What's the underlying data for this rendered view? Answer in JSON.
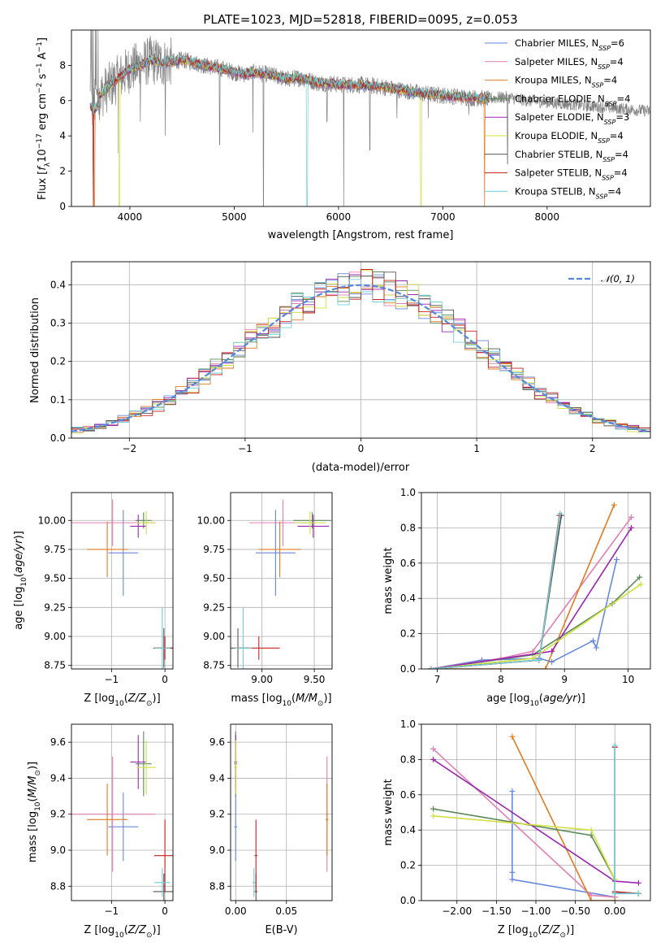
{
  "chart_data": [
    {
      "id": "spectrum",
      "type": "line",
      "title": "PLATE=1023, MJD=52818, FIBERID=0095, z=0.053",
      "xlabel": "wavelength [Angstrom, rest frame]",
      "ylabel": "Flux [f_λ 10^-17 erg cm^-2 s^-1 A^-1]",
      "xlim": [
        3440,
        8990
      ],
      "ylim": [
        0,
        10
      ],
      "xticks": [
        4000,
        5000,
        6000,
        7000,
        8000
      ],
      "yticks": [
        0,
        2,
        4,
        6,
        8
      ],
      "grid": false,
      "legend_position": "top-right",
      "data_color": "#808080",
      "continuum_points": [
        [
          3630,
          5.6
        ],
        [
          3700,
          6.2
        ],
        [
          3800,
          6.8
        ],
        [
          3900,
          7.3
        ],
        [
          4000,
          7.8
        ],
        [
          4100,
          8.0
        ],
        [
          4200,
          8.3
        ],
        [
          4300,
          8.1
        ],
        [
          4400,
          8.2
        ],
        [
          4500,
          8.3
        ],
        [
          4600,
          8.2
        ],
        [
          4700,
          8.0
        ],
        [
          4800,
          7.9
        ],
        [
          4900,
          7.8
        ],
        [
          5000,
          7.6
        ],
        [
          5100,
          7.5
        ],
        [
          5200,
          7.6
        ],
        [
          5300,
          7.5
        ],
        [
          5400,
          7.4
        ],
        [
          5500,
          7.2
        ],
        [
          5600,
          7.3
        ],
        [
          5700,
          7.2
        ],
        [
          5800,
          7.0
        ],
        [
          5900,
          7.0
        ],
        [
          6000,
          6.9
        ],
        [
          6200,
          6.9
        ],
        [
          6400,
          6.8
        ],
        [
          6600,
          6.6
        ],
        [
          6800,
          6.4
        ],
        [
          7000,
          6.3
        ],
        [
          7200,
          6.2
        ],
        [
          7400,
          6.1
        ],
        [
          7600,
          6.2
        ],
        [
          7800,
          6.0
        ],
        [
          8000,
          5.9
        ],
        [
          8200,
          5.8
        ],
        [
          8400,
          5.7
        ],
        [
          8600,
          5.6
        ],
        [
          8800,
          5.5
        ],
        [
          8990,
          5.4
        ]
      ],
      "noise_end": 7430,
      "model_end": 7450,
      "data_end": 8990,
      "series": [
        {
          "name": "Chabrier MILES, N_SSP=6",
          "color": "#6688dd",
          "dips": [
            [
              3650,
              0.3
            ]
          ]
        },
        {
          "name": "Salpeter MILES, N_SSP=4",
          "color": "#e07fb3",
          "dips": []
        },
        {
          "name": "Kroupa MILES, N_SSP=4",
          "color": "#e07b20",
          "dips": [
            [
              3660,
              0.0
            ],
            [
              7400,
              0.0
            ]
          ]
        },
        {
          "name": "Chabrier ELODIE, N_SSP=4",
          "color": "#5a8a5a",
          "dips": []
        },
        {
          "name": "Salpeter ELODIE, N_SSP=3",
          "color": "#9b27b0",
          "dips": []
        },
        {
          "name": "Kroupa ELODIE, N_SSP=4",
          "color": "#d0e040",
          "dips": [
            [
              3900,
              0.0
            ],
            [
              6790,
              0.0
            ]
          ]
        },
        {
          "name": "Chabrier STELIB, N_SSP=4",
          "color": "#555555",
          "dips": []
        },
        {
          "name": "Salpeter STELIB, N_SSP=4",
          "color": "#c82020",
          "dips": [
            [
              3650,
              0.0
            ]
          ]
        },
        {
          "name": "Kroupa STELIB, N_SSP=4",
          "color": "#70d0d8",
          "dips": [
            [
              5700,
              0.0
            ]
          ]
        }
      ],
      "data_dips": [
        [
          3890,
          3.0
        ],
        [
          4100,
          4.8
        ],
        [
          4340,
          4.0
        ],
        [
          4860,
          3.5
        ],
        [
          5180,
          4.2
        ],
        [
          5280,
          0.0
        ],
        [
          5890,
          4.8
        ],
        [
          6050,
          0.0
        ],
        [
          6300,
          3.2
        ],
        [
          6560,
          5.0
        ],
        [
          6860,
          5.0
        ],
        [
          7250,
          5.2
        ],
        [
          7620,
          2.4
        ]
      ]
    },
    {
      "id": "residuals",
      "type": "line",
      "xlabel": "(data-model)/error",
      "ylabel": "Normed distribution",
      "xlim": [
        -2.5,
        2.5
      ],
      "ylim": [
        0,
        0.46
      ],
      "xticks": [
        -2,
        -1,
        0,
        1,
        2
      ],
      "yticks": [
        0.0,
        0.1,
        0.2,
        0.3,
        0.4
      ],
      "grid": true,
      "legend_position": "top-right",
      "gaussian_label": "𝒩(0, 1)",
      "gaussian_color": "#5588dd",
      "bin_width": 0.1
    },
    {
      "id": "age_vs_Z",
      "type": "scatter",
      "xlabel": "Z [log10(Z/Z⊙)]",
      "ylabel": "age  [log10(age/yr)]",
      "xlim": [
        -1.75,
        0.15
      ],
      "ylim": [
        8.72,
        10.24
      ],
      "xticks": [
        -1,
        0
      ],
      "yticks": [
        8.75,
        9.0,
        9.25,
        9.5,
        9.75,
        10.0
      ],
      "grid": true
    },
    {
      "id": "age_vs_mass",
      "type": "scatter",
      "xlabel": "mass [log10(M/M⊙)]",
      "ylabel": "",
      "xlim": [
        8.7,
        9.67
      ],
      "ylim": [
        8.72,
        10.24
      ],
      "xticks": [
        9.0,
        9.5
      ],
      "yticks": [
        8.75,
        9.0,
        9.25,
        9.5,
        9.75,
        10.0
      ],
      "grid": true
    },
    {
      "id": "weight_vs_age",
      "type": "line",
      "xlabel": "age  [log10(age/yr)]",
      "ylabel": "mass weight",
      "xlim": [
        6.75,
        10.35
      ],
      "ylim": [
        0,
        1
      ],
      "xticks": [
        7,
        8,
        9,
        10
      ],
      "yticks": [
        0.0,
        0.2,
        0.4,
        0.6,
        0.8,
        1.0
      ],
      "grid": true
    },
    {
      "id": "mass_vs_Z",
      "type": "scatter",
      "xlabel": "Z [log10(Z/Z⊙)]",
      "ylabel": "mass [log10(M/M⊙)]",
      "xlim": [
        -1.75,
        0.15
      ],
      "ylim": [
        8.72,
        9.7
      ],
      "xticks": [
        -1,
        0
      ],
      "yticks": [
        8.8,
        9.0,
        9.2,
        9.4,
        9.6
      ],
      "grid": true
    },
    {
      "id": "mass_vs_EBV",
      "type": "scatter",
      "xlabel": "E(B-V)",
      "ylabel": "",
      "xlim": [
        -0.005,
        0.095
      ],
      "ylim": [
        8.72,
        9.7
      ],
      "xticks": [
        0.0,
        0.05
      ],
      "yticks": [
        8.8,
        9.0,
        9.2,
        9.4,
        9.6
      ],
      "grid": true
    },
    {
      "id": "weight_vs_Z",
      "type": "line",
      "xlabel": "Z [log10(Z/Z⊙)]",
      "ylabel": "mass weight",
      "xlim": [
        -2.45,
        0.45
      ],
      "ylim": [
        0,
        1
      ],
      "xticks": [
        -2.0,
        -1.5,
        -1.0,
        -0.5,
        0.0
      ],
      "yticks": [
        0.0,
        0.2,
        0.4,
        0.6,
        0.8,
        1.0
      ],
      "grid": true
    }
  ],
  "models": [
    {
      "color": "#6688dd",
      "Z": -0.78,
      "Zerr": 0.28,
      "age": 9.72,
      "ageerr": 0.37,
      "mass": 9.13,
      "masserr": 0.19,
      "ebv": 0.0,
      "w_age": [
        [
          6.9,
          0.0
        ],
        [
          7.7,
          0.05
        ],
        [
          8.6,
          0.06
        ],
        [
          8.8,
          0.04
        ],
        [
          9.45,
          0.16
        ],
        [
          9.5,
          0.12
        ],
        [
          9.82,
          0.62
        ]
      ],
      "w_Z": [
        [
          -1.3,
          0.62
        ],
        [
          -1.3,
          0.16
        ],
        [
          -1.3,
          0.12
        ],
        [
          0.0,
          0.02
        ],
        [
          0.0,
          0.04
        ]
      ]
    },
    {
      "color": "#e07fb3",
      "Z": -0.98,
      "Zerr": 0.8,
      "age": 9.98,
      "ageerr": 0.2,
      "mass": 9.2,
      "masserr": 0.32,
      "ebv": 0.09,
      "w_age": [
        [
          6.9,
          0.0
        ],
        [
          8.0,
          0.06
        ],
        [
          8.5,
          0.1
        ],
        [
          10.05,
          0.86
        ]
      ],
      "w_Z": [
        [
          -2.3,
          0.86
        ],
        [
          -0.3,
          0.03
        ],
        [
          0.0,
          0.02
        ]
      ]
    },
    {
      "color": "#e07b20",
      "Z": -1.08,
      "Zerr": 0.38,
      "age": 9.75,
      "ageerr": 0.24,
      "mass": 9.17,
      "masserr": 0.2,
      "ebv": 0.09,
      "w_age": [
        [
          6.9,
          0.0
        ],
        [
          8.7,
          0.0
        ],
        [
          9.78,
          0.93
        ]
      ],
      "w_Z": [
        [
          -1.3,
          0.93
        ],
        [
          -0.3,
          0.0
        ],
        [
          0.0,
          0.0
        ]
      ]
    },
    {
      "color": "#5a8a5a",
      "Z": -0.4,
      "Zerr": 0.15,
      "age": 10.0,
      "ageerr": 0.07,
      "mass": 9.48,
      "masserr": 0.18,
      "ebv": 0.0,
      "w_age": [
        [
          6.9,
          0.0
        ],
        [
          8.5,
          0.08
        ],
        [
          9.75,
          0.37
        ],
        [
          10.18,
          0.52
        ]
      ],
      "w_Z": [
        [
          -2.3,
          0.52
        ],
        [
          -0.3,
          0.37
        ],
        [
          0.0,
          0.12
        ]
      ]
    },
    {
      "color": "#9b27b0",
      "Z": -0.5,
      "Zerr": 0.15,
      "age": 9.95,
      "ageerr": 0.1,
      "mass": 9.49,
      "masserr": 0.15,
      "ebv": 0.0,
      "w_age": [
        [
          6.9,
          0.0
        ],
        [
          8.8,
          0.1
        ],
        [
          10.05,
          0.8
        ]
      ],
      "w_Z": [
        [
          -2.3,
          0.8
        ],
        [
          0.0,
          0.11
        ],
        [
          0.3,
          0.1
        ]
      ]
    },
    {
      "color": "#d0e040",
      "Z": -0.35,
      "Zerr": 0.18,
      "age": 9.98,
      "ageerr": 0.1,
      "mass": 9.46,
      "masserr": 0.15,
      "ebv": 0.0,
      "w_age": [
        [
          6.9,
          0.0
        ],
        [
          8.5,
          0.06
        ],
        [
          10.2,
          0.48
        ]
      ],
      "w_Z": [
        [
          -2.3,
          0.48
        ],
        [
          -0.3,
          0.4
        ],
        [
          0.0,
          0.12
        ]
      ]
    },
    {
      "color": "#555555",
      "Z": -0.02,
      "Zerr": 0.2,
      "age": 8.9,
      "ageerr": 0.17,
      "mass": 8.77,
      "masserr": 0.1,
      "ebv": 0.02,
      "w_age": [
        [
          6.9,
          0.0
        ],
        [
          8.6,
          0.05
        ],
        [
          8.95,
          0.87
        ]
      ],
      "w_Z": [
        [
          0.0,
          0.87
        ],
        [
          0.0,
          0.05
        ],
        [
          0.3,
          0.04
        ]
      ]
    },
    {
      "color": "#c82020",
      "Z": 0.0,
      "Zerr": 0.2,
      "age": 8.9,
      "ageerr": 0.1,
      "mass": 8.97,
      "masserr": 0.2,
      "ebv": 0.02,
      "w_age": [
        [
          6.9,
          0.0
        ],
        [
          8.6,
          0.05
        ],
        [
          8.92,
          0.87
        ]
      ],
      "w_Z": [
        [
          0.0,
          0.87
        ],
        [
          0.0,
          0.05
        ],
        [
          0.3,
          0.04
        ]
      ]
    },
    {
      "color": "#70d0d8",
      "Z": -0.05,
      "Zerr": 0.15,
      "age": 8.9,
      "ageerr": 0.35,
      "mass": 8.82,
      "masserr": 0.08,
      "ebv": 0.018,
      "w_age": [
        [
          6.9,
          0.0
        ],
        [
          8.6,
          0.05
        ],
        [
          8.93,
          0.88
        ]
      ],
      "w_Z": [
        [
          0.0,
          0.88
        ],
        [
          0.0,
          0.04
        ],
        [
          0.3,
          0.04
        ]
      ]
    }
  ]
}
